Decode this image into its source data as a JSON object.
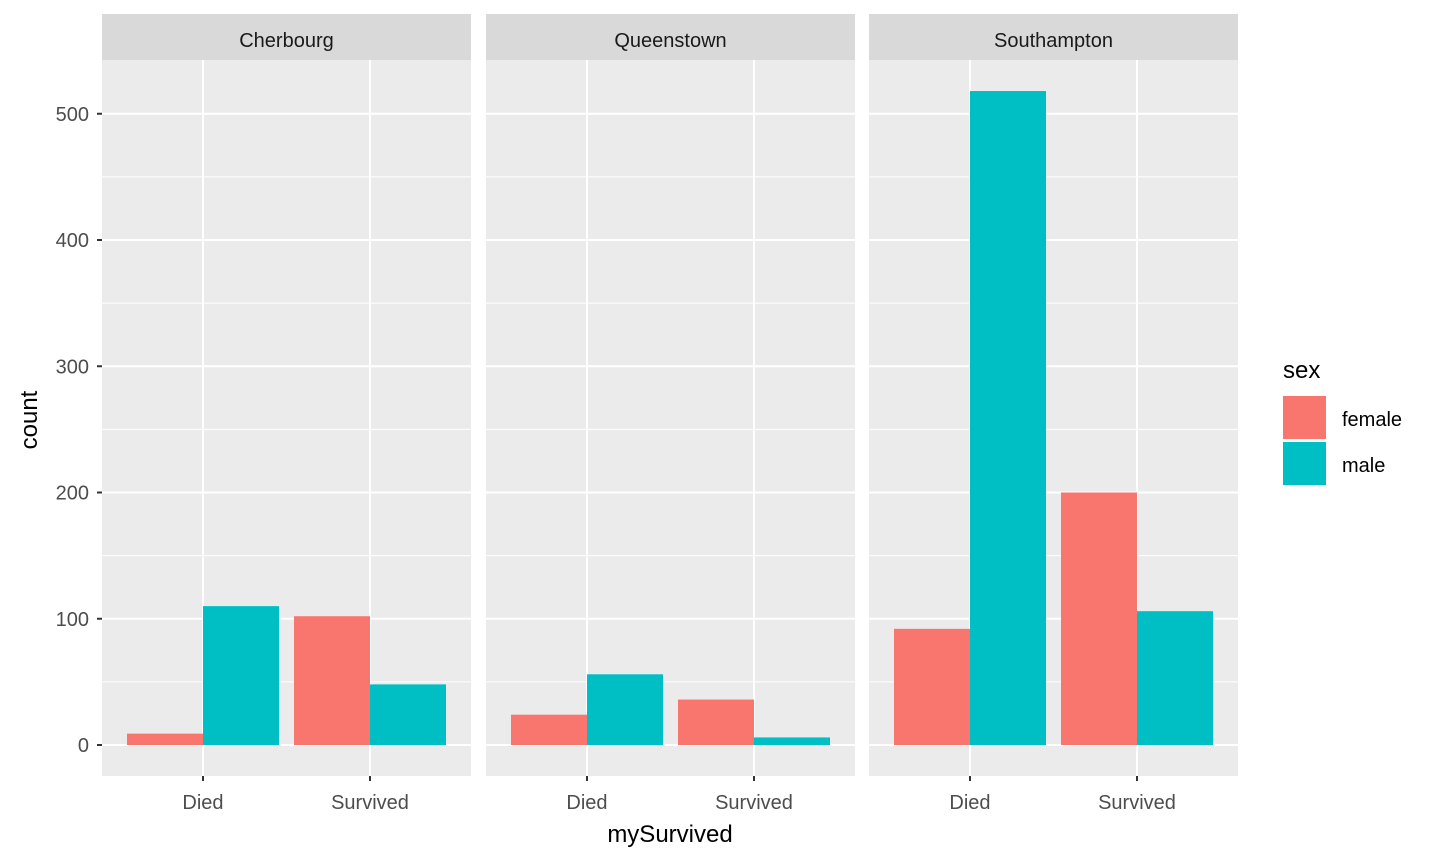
{
  "chart_data": {
    "type": "bar",
    "layout": "grouped, faceted",
    "facets": [
      "Cherbourg",
      "Queenstown",
      "Southampton"
    ],
    "categories": [
      "Died",
      "Survived"
    ],
    "series": [
      {
        "name": "female",
        "color": "#F8766D",
        "values": {
          "Cherbourg": [
            9,
            102
          ],
          "Queenstown": [
            24,
            36
          ],
          "Southampton": [
            92,
            200
          ]
        }
      },
      {
        "name": "male",
        "color": "#00BFC4",
        "values": {
          "Cherbourg": [
            110,
            48
          ],
          "Queenstown": [
            56,
            6
          ],
          "Southampton": [
            518,
            106
          ]
        }
      }
    ],
    "xlabel": "mySurvived",
    "ylabel": "count",
    "ylim": [
      -24,
      545
    ],
    "yticks": [
      0,
      100,
      200,
      300,
      400,
      500
    ],
    "grid": true,
    "legend": {
      "title": "sex",
      "position": "right"
    },
    "panel_background": "#EBEBEB",
    "strip_background": "#D9D9D9"
  }
}
